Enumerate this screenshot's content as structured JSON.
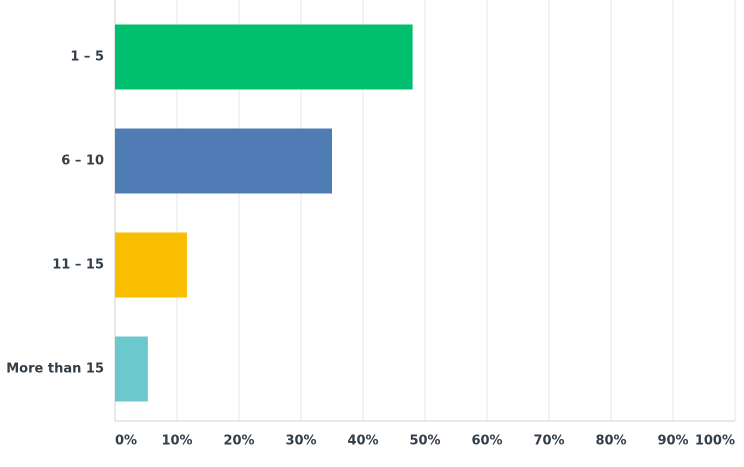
{
  "chart_data": {
    "type": "bar",
    "orientation": "horizontal",
    "categories": [
      "1 – 5",
      "6 – 10",
      "11 – 15",
      "More than 15"
    ],
    "values": [
      48,
      35,
      11.6,
      5.3
    ],
    "colors": [
      "#00bf6f",
      "#507cb6",
      "#f9be00",
      "#6bc8cd"
    ],
    "xlim": [
      0,
      100
    ],
    "xticks": [
      {
        "value": 0,
        "label": "0%"
      },
      {
        "value": 10,
        "label": "10%"
      },
      {
        "value": 20,
        "label": "20%"
      },
      {
        "value": 30,
        "label": "30%"
      },
      {
        "value": 40,
        "label": "40%"
      },
      {
        "value": 50,
        "label": "50%"
      },
      {
        "value": 60,
        "label": "60%"
      },
      {
        "value": 70,
        "label": "70%"
      },
      {
        "value": 80,
        "label": "80%"
      },
      {
        "value": 90,
        "label": "90%"
      },
      {
        "value": 100,
        "label": "100%"
      }
    ],
    "grid": true
  }
}
